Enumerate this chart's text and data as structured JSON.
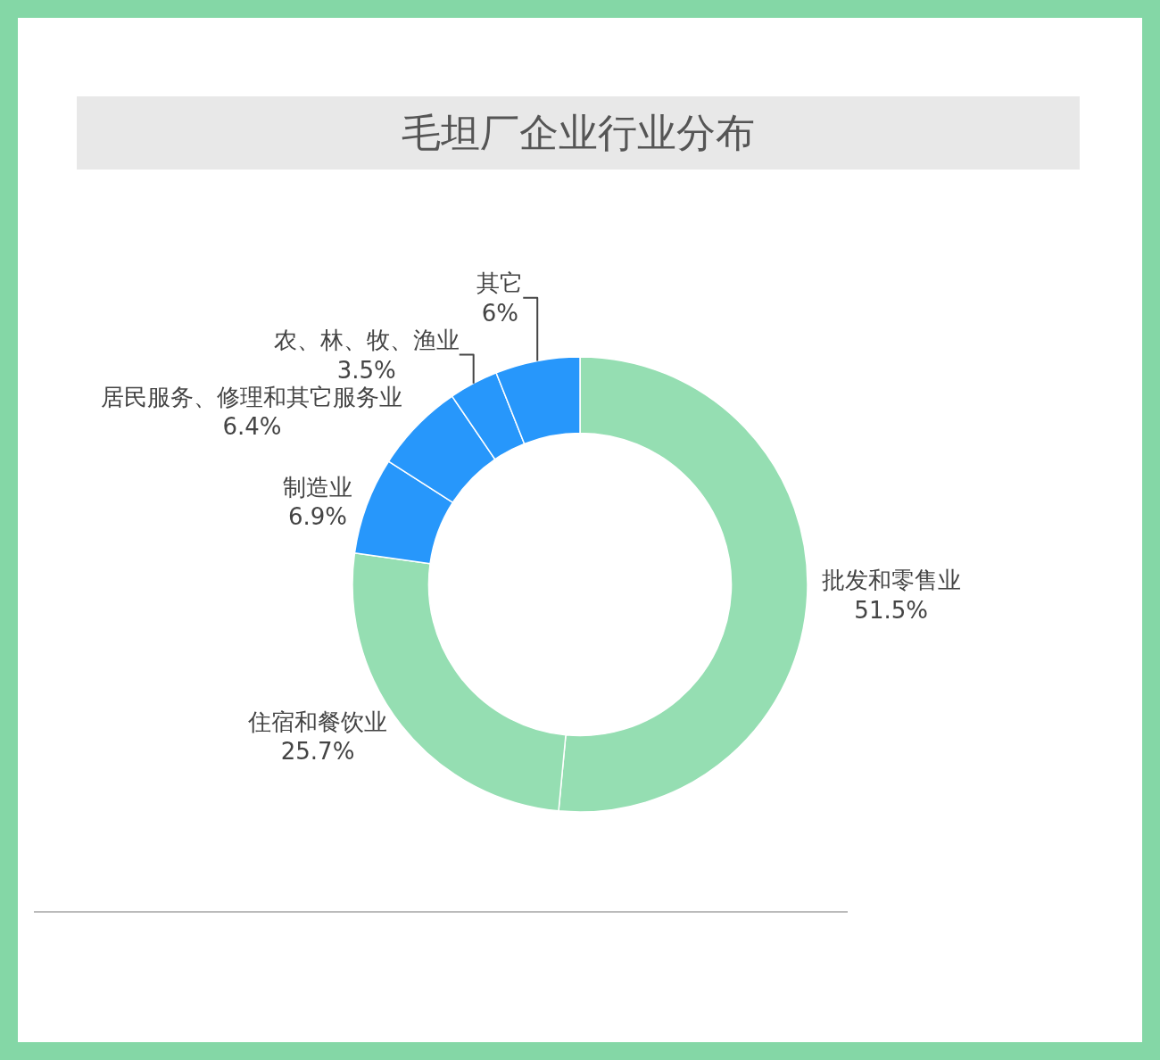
{
  "chart_data": {
    "type": "donut",
    "title": "毛坦厂企业行业分布",
    "categories": [
      "批发和零售业",
      "住宿和餐饮业",
      "制造业",
      "居民服务、修理和其它服务业",
      "农、林、牧、渔业",
      "其它"
    ],
    "values": [
      51.5,
      25.7,
      6.9,
      6.4,
      3.5,
      6
    ],
    "value_labels": [
      "51.5%",
      "25.7%",
      "6.9%",
      "6.4%",
      "3.5%",
      "6%"
    ],
    "colors": [
      "#95deb2",
      "#95deb2",
      "#2797fb",
      "#2797fb",
      "#2797fb",
      "#2797fb"
    ],
    "legend": false
  }
}
